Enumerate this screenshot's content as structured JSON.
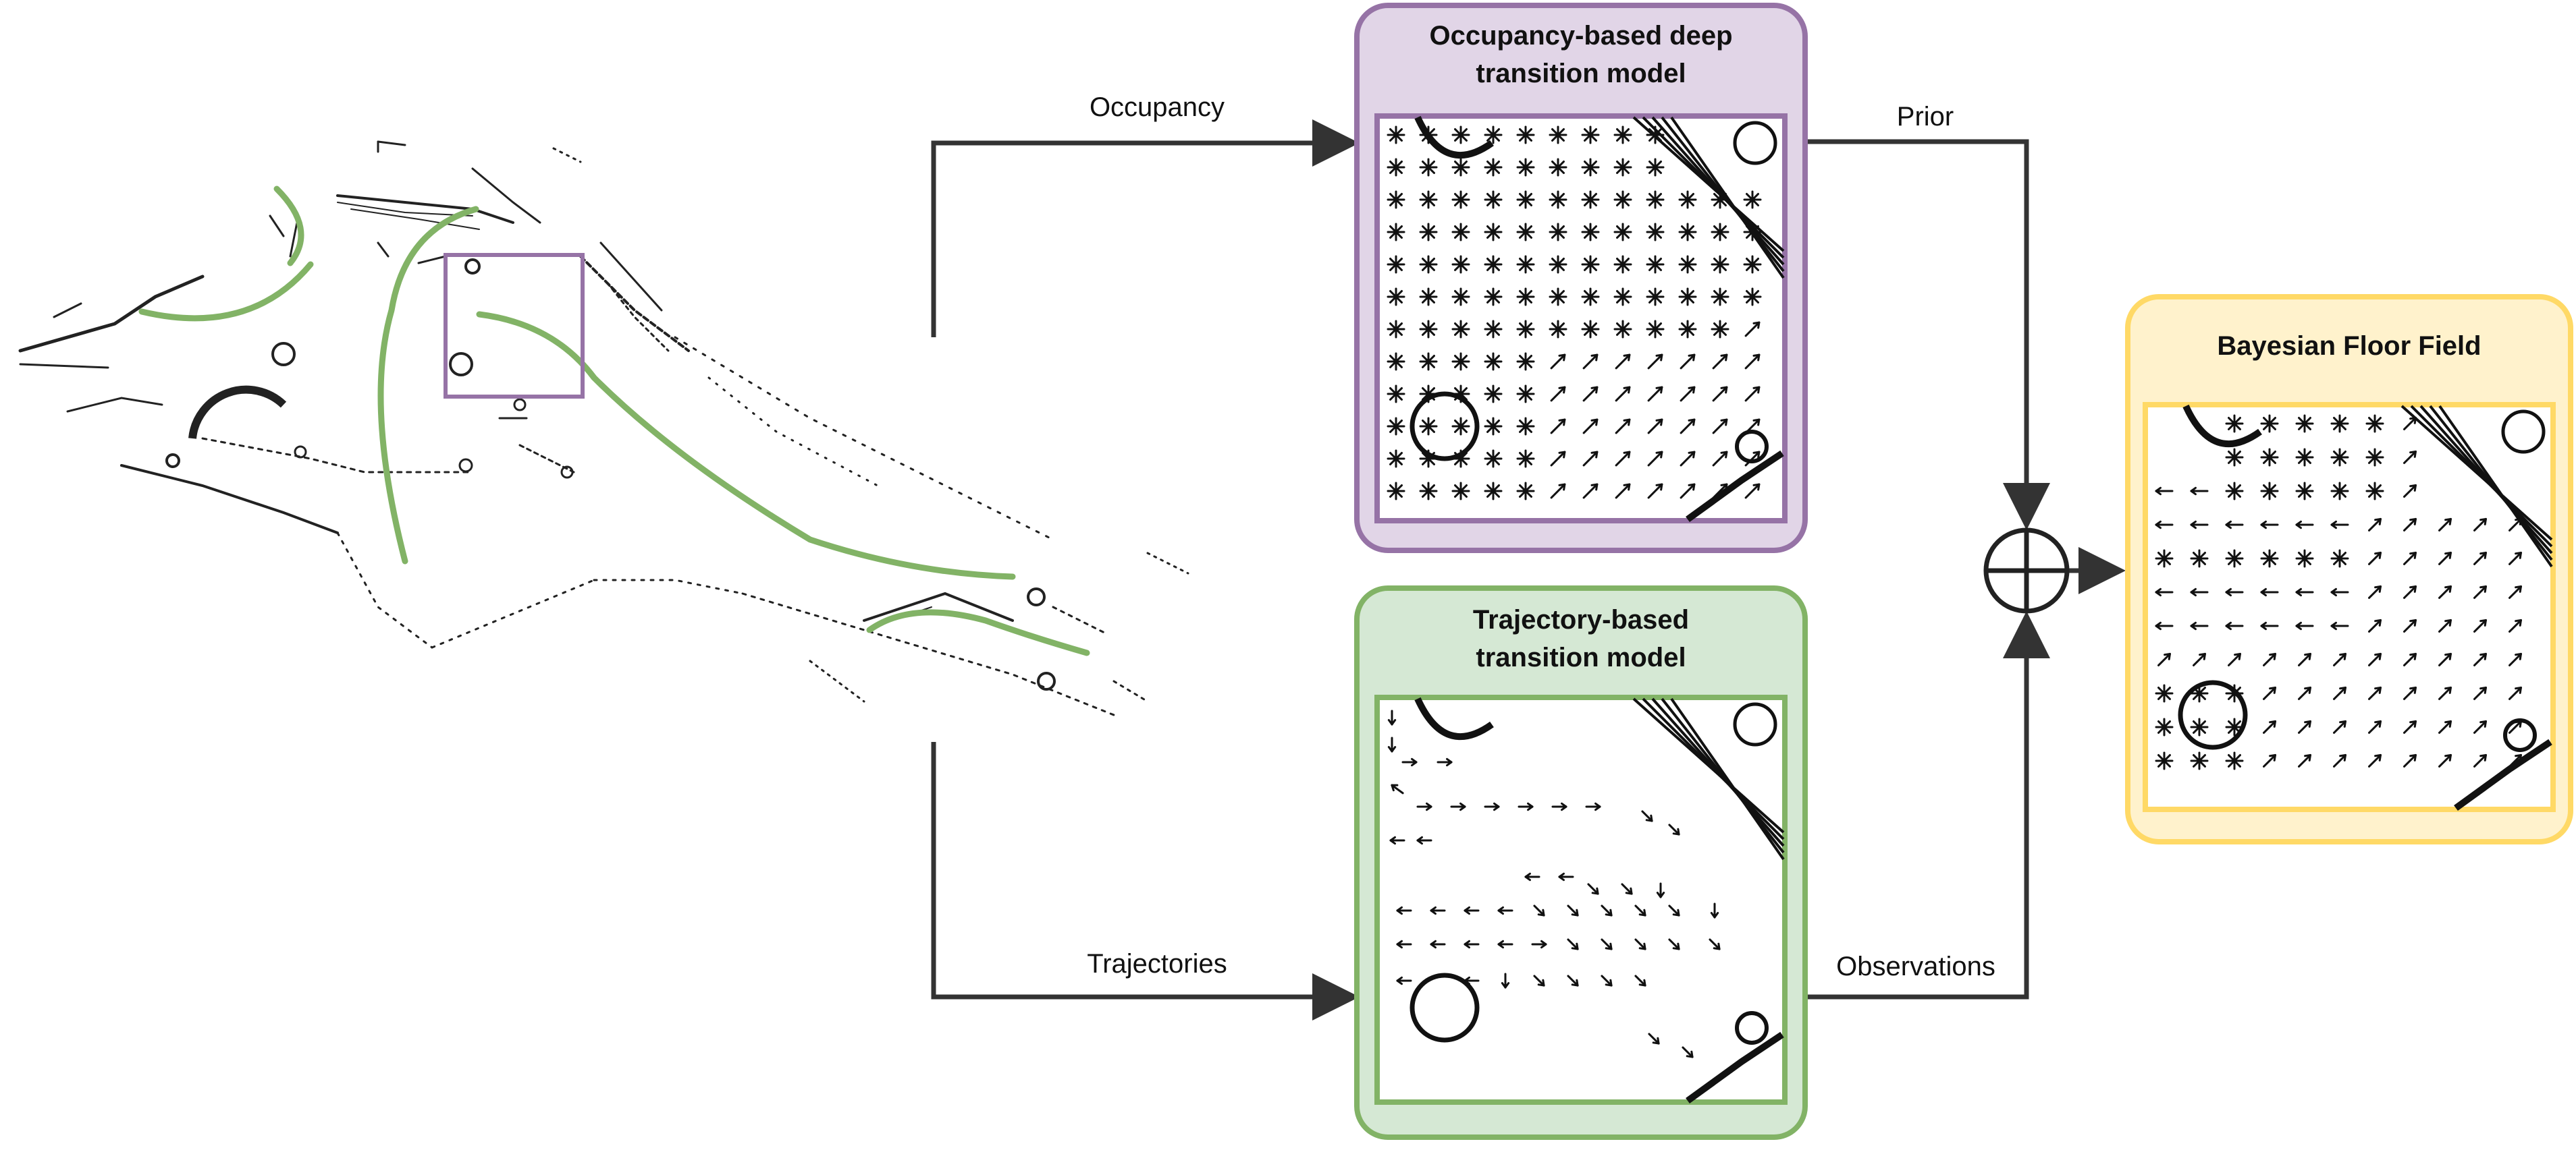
{
  "diagram": {
    "edge_labels": {
      "occupancy": "Occupancy",
      "trajectories": "Trajectories",
      "prior": "Prior",
      "observations": "Observations"
    },
    "boxes": {
      "occupancy_model": {
        "title_line1": "Occupancy-based deep",
        "title_line2": "transition model",
        "fill": "#e1d5e7",
        "stroke": "#9673a6"
      },
      "trajectory_model": {
        "title_line1": "Trajectory-based",
        "title_line2": "transition model",
        "fill": "#d5e8d4",
        "stroke": "#82b366"
      },
      "bayesian_floor_field": {
        "title": "Bayesian Floor Field",
        "fill": "#fff2cc",
        "stroke": "#ffd966"
      }
    },
    "combiner": {
      "symbol": "oplus",
      "meaning": "combine prior and observations"
    },
    "map": {
      "trajectory_color": "#82b366",
      "highlight_color": "#9673a6",
      "trajectory_count": 5
    }
  }
}
